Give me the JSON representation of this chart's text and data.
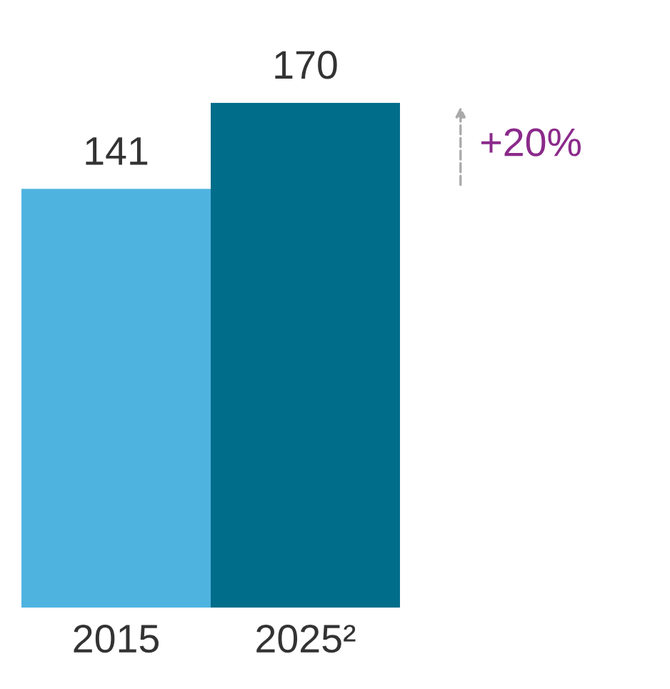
{
  "chart_data": {
    "type": "bar",
    "categories": [
      "2015",
      "2025²"
    ],
    "values": [
      141,
      170
    ],
    "colors": [
      "#4fb3e0",
      "#006d8a"
    ],
    "data_labels": true,
    "annotations": [
      "+20%"
    ]
  }
}
